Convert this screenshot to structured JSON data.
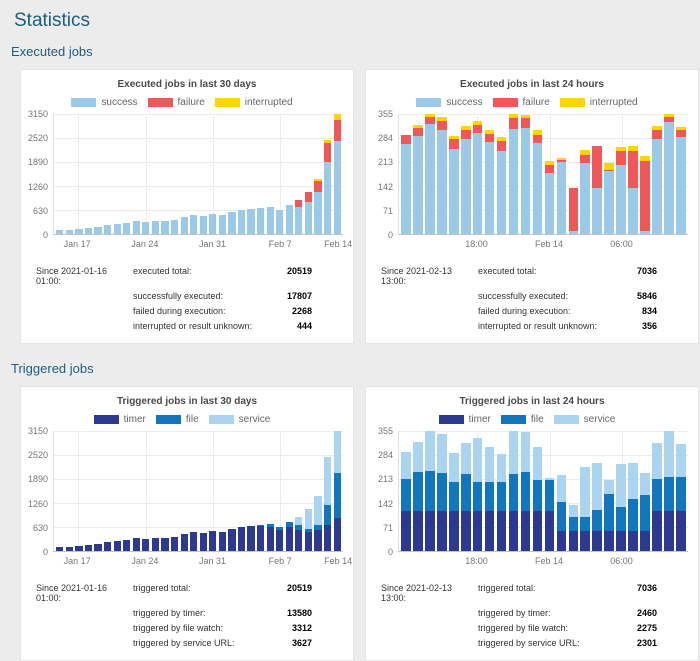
{
  "page": {
    "title": "Statistics",
    "background": "#ececec",
    "accent": "#1d5d82"
  },
  "sections": [
    {
      "label": "Executed jobs"
    },
    {
      "label": "Triggered jobs"
    }
  ],
  "chart_data": [
    {
      "type": "bar",
      "stacked": true,
      "title": "Executed jobs in last 30 days",
      "legend_position": "top",
      "ylim": [
        0,
        3150
      ],
      "y_ticks": [
        3150,
        2520,
        1890,
        1260,
        630,
        0
      ],
      "x_ticks": [
        {
          "label": "Jan 17",
          "index": 2
        },
        {
          "label": "Jan 24",
          "index": 9
        },
        {
          "label": "Jan 31",
          "index": 16
        },
        {
          "label": "Feb 7",
          "index": 23
        },
        {
          "label": "Feb 14",
          "index": 29
        }
      ],
      "series": [
        {
          "name": "success",
          "color": "#9cc9e8",
          "values": [
            100,
            95,
            130,
            150,
            190,
            230,
            250,
            280,
            330,
            320,
            340,
            350,
            380,
            450,
            500,
            480,
            520,
            510,
            570,
            620,
            650,
            680,
            700,
            620,
            760,
            700,
            850,
            1100,
            1900,
            2450
          ]
        },
        {
          "name": "failure",
          "color": "#ef5858",
          "values": [
            0,
            0,
            0,
            0,
            0,
            0,
            0,
            0,
            0,
            0,
            0,
            0,
            0,
            0,
            0,
            0,
            0,
            0,
            0,
            0,
            0,
            0,
            0,
            0,
            0,
            200,
            250,
            280,
            480,
            550
          ]
        },
        {
          "name": "interrupted",
          "color": "#fed500",
          "values": [
            0,
            0,
            0,
            0,
            0,
            0,
            0,
            0,
            0,
            0,
            0,
            0,
            0,
            0,
            0,
            0,
            0,
            0,
            0,
            0,
            0,
            0,
            0,
            0,
            0,
            0,
            0,
            70,
            80,
            150
          ]
        }
      ],
      "stats": {
        "since": "Since 2021-01-16 01:00:",
        "rows": [
          {
            "label": "executed total:",
            "value": "20519"
          },
          {
            "label": "successfully executed:",
            "value": "17807"
          },
          {
            "label": "failed during execution:",
            "value": "2268"
          },
          {
            "label": "interrupted or result unknown:",
            "value": "444"
          }
        ]
      }
    },
    {
      "type": "bar",
      "stacked": true,
      "title": "Executed jobs in last 24 hours",
      "legend_position": "top",
      "ylim": [
        0,
        355
      ],
      "y_ticks": [
        355,
        284,
        213,
        142,
        71,
        0
      ],
      "x_ticks": [
        {
          "label": "18:00",
          "index": 6
        },
        {
          "label": "Feb 14",
          "index": 12
        },
        {
          "label": "06:00",
          "index": 18
        }
      ],
      "series": [
        {
          "name": "success",
          "color": "#9cc9e8",
          "values": [
            265,
            290,
            325,
            308,
            252,
            282,
            298,
            272,
            245,
            312,
            315,
            268,
            180,
            212,
            8,
            210,
            135,
            185,
            205,
            135,
            10,
            280,
            330,
            288
          ]
        },
        {
          "name": "failure",
          "color": "#ef5858",
          "values": [
            28,
            25,
            20,
            25,
            28,
            25,
            25,
            25,
            30,
            30,
            28,
            25,
            25,
            8,
            128,
            25,
            125,
            5,
            40,
            110,
            205,
            28,
            17,
            20
          ]
        },
        {
          "name": "interrupted",
          "color": "#fed500",
          "values": [
            0,
            8,
            10,
            12,
            10,
            12,
            12,
            12,
            12,
            13,
            10,
            15,
            12,
            5,
            0,
            15,
            0,
            20,
            12,
            15,
            15,
            12,
            8,
            10
          ]
        }
      ],
      "stats": {
        "since": "Since 2021-02-13 13:00:",
        "rows": [
          {
            "label": "executed total:",
            "value": "7036"
          },
          {
            "label": "successfully executed:",
            "value": "5846"
          },
          {
            "label": "failed during execution:",
            "value": "834"
          },
          {
            "label": "interrupted or result unknown:",
            "value": "356"
          }
        ]
      }
    },
    {
      "type": "bar",
      "stacked": true,
      "title": "Triggered jobs in last 30 days",
      "legend_position": "top",
      "ylim": [
        0,
        3150
      ],
      "y_ticks": [
        3150,
        2520,
        1890,
        1260,
        630,
        0
      ],
      "x_ticks": [
        {
          "label": "Jan 17",
          "index": 2
        },
        {
          "label": "Jan 24",
          "index": 9
        },
        {
          "label": "Jan 31",
          "index": 16
        },
        {
          "label": "Feb 7",
          "index": 23
        },
        {
          "label": "Feb 14",
          "index": 29
        }
      ],
      "series": [
        {
          "name": "timer",
          "color": "#2b3a90",
          "values": [
            100,
            95,
            130,
            150,
            190,
            230,
            250,
            280,
            330,
            320,
            340,
            350,
            380,
            450,
            500,
            480,
            520,
            510,
            570,
            620,
            650,
            660,
            630,
            560,
            620,
            560,
            500,
            560,
            680,
            870
          ]
        },
        {
          "name": "file",
          "color": "#1276bd",
          "values": [
            0,
            0,
            0,
            0,
            0,
            0,
            0,
            0,
            0,
            0,
            0,
            0,
            0,
            0,
            0,
            0,
            0,
            0,
            0,
            0,
            0,
            20,
            70,
            60,
            140,
            120,
            90,
            130,
            520,
            1180
          ]
        },
        {
          "name": "service",
          "color": "#abd4f0",
          "values": [
            0,
            0,
            0,
            0,
            0,
            0,
            0,
            0,
            0,
            0,
            0,
            0,
            0,
            0,
            0,
            0,
            0,
            0,
            0,
            0,
            0,
            0,
            0,
            0,
            0,
            220,
            510,
            760,
            1260,
            1100
          ]
        }
      ],
      "stats": {
        "since": "Since 2021-01-16 01:00:",
        "rows": [
          {
            "label": "triggered total:",
            "value": "20519"
          },
          {
            "label": "triggered by timer:",
            "value": "13580"
          },
          {
            "label": "triggered by file watch:",
            "value": "3312"
          },
          {
            "label": "triggered by service URL:",
            "value": "3627"
          }
        ]
      }
    },
    {
      "type": "bar",
      "stacked": true,
      "title": "Triggered jobs in last 24 hours",
      "legend_position": "top",
      "ylim": [
        0,
        355
      ],
      "y_ticks": [
        355,
        284,
        213,
        142,
        71,
        0
      ],
      "x_ticks": [
        {
          "label": "18:00",
          "index": 6
        },
        {
          "label": "Feb 14",
          "index": 12
        },
        {
          "label": "06:00",
          "index": 18
        }
      ],
      "series": [
        {
          "name": "timer",
          "color": "#2b3a90",
          "values": [
            118,
            118,
            118,
            118,
            118,
            118,
            118,
            118,
            118,
            118,
            118,
            118,
            118,
            60,
            60,
            60,
            60,
            60,
            60,
            60,
            60,
            118,
            118,
            118
          ]
        },
        {
          "name": "file",
          "color": "#1276bd",
          "values": [
            95,
            115,
            118,
            112,
            85,
            110,
            87,
            85,
            85,
            110,
            117,
            92,
            92,
            85,
            40,
            40,
            60,
            110,
            70,
            95,
            105,
            95,
            100,
            100
          ]
        },
        {
          "name": "service",
          "color": "#abd4f0",
          "values": [
            80,
            90,
            119,
            115,
            87,
            91,
            130,
            106,
            84,
            126,
            118,
            98,
            7,
            80,
            36,
            150,
            140,
            40,
            127,
            105,
            65,
            107,
            137,
            100
          ]
        }
      ],
      "stats": {
        "since": "Since 2021-02-13 13:00:",
        "rows": [
          {
            "label": "triggered total:",
            "value": "7036"
          },
          {
            "label": "triggered by timer:",
            "value": "2460"
          },
          {
            "label": "triggered by file watch:",
            "value": "2275"
          },
          {
            "label": "triggered by service URL:",
            "value": "2301"
          }
        ]
      }
    }
  ]
}
